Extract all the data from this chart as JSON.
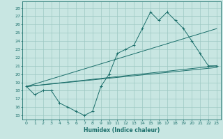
{
  "xlabel": "Humidex (Indice chaleur)",
  "xlim": [
    -0.5,
    23.5
  ],
  "ylim": [
    14.5,
    28.8
  ],
  "yticks": [
    15,
    16,
    17,
    18,
    19,
    20,
    21,
    22,
    23,
    24,
    25,
    26,
    27,
    28
  ],
  "xticks": [
    0,
    1,
    2,
    3,
    4,
    5,
    6,
    7,
    8,
    9,
    10,
    11,
    12,
    13,
    14,
    15,
    16,
    17,
    18,
    19,
    20,
    21,
    22,
    23
  ],
  "bg_color": "#c8e6e2",
  "grid_color": "#9dc8c3",
  "line_color": "#1a6e6a",
  "curve1_x": [
    0,
    1,
    2,
    3,
    4,
    5,
    6,
    7,
    8,
    9,
    10,
    11,
    12,
    13,
    14,
    15,
    16,
    17,
    18,
    19,
    20,
    21,
    22,
    23
  ],
  "curve1_y": [
    18.5,
    17.5,
    18.0,
    18.0,
    16.5,
    16.0,
    15.5,
    15.0,
    15.5,
    18.5,
    20.0,
    22.5,
    23.0,
    23.5,
    25.5,
    27.5,
    26.5,
    27.5,
    26.5,
    25.5,
    24.0,
    22.5,
    21.0,
    21.0
  ],
  "line1_y0": 18.5,
  "line1_y1": 25.5,
  "line2_y0": 18.5,
  "line2_y1": 21.0,
  "line3_y0": 18.5,
  "line3_y1": 20.8
}
